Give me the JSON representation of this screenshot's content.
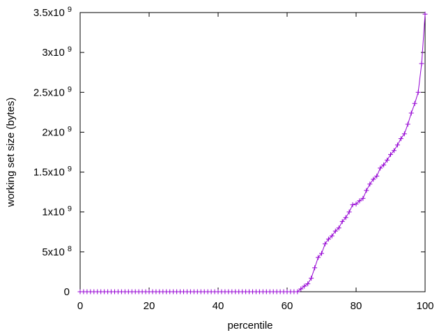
{
  "chart_data": {
    "type": "line",
    "xlabel": "percentile",
    "ylabel": "working set size (bytes)",
    "x": [
      0,
      1,
      2,
      3,
      4,
      5,
      6,
      7,
      8,
      9,
      10,
      11,
      12,
      13,
      14,
      15,
      16,
      17,
      18,
      19,
      20,
      21,
      22,
      23,
      24,
      25,
      26,
      27,
      28,
      29,
      30,
      31,
      32,
      33,
      34,
      35,
      36,
      37,
      38,
      39,
      40,
      41,
      42,
      43,
      44,
      45,
      46,
      47,
      48,
      49,
      50,
      51,
      52,
      53,
      54,
      55,
      56,
      57,
      58,
      59,
      60,
      61,
      62,
      63,
      64,
      65,
      66,
      67,
      68,
      69,
      70,
      71,
      72,
      73,
      74,
      75,
      76,
      77,
      78,
      79,
      80,
      81,
      82,
      83,
      84,
      85,
      86,
      87,
      88,
      89,
      90,
      91,
      92,
      93,
      94,
      95,
      96,
      97,
      98,
      99,
      100
    ],
    "series": [
      {
        "color": "#9400d3",
        "marker": "+",
        "values": [
          0,
          0,
          0,
          0,
          0,
          0,
          0,
          0,
          0,
          0,
          0,
          0,
          0,
          0,
          0,
          0,
          0,
          0,
          0,
          0,
          0,
          0,
          0,
          0,
          0,
          0,
          0,
          0,
          0,
          0,
          0,
          0,
          0,
          0,
          0,
          0,
          0,
          0,
          0,
          0,
          0,
          0,
          0,
          0,
          0,
          0,
          0,
          0,
          0,
          0,
          0,
          0,
          0,
          0,
          0,
          0,
          0,
          0,
          0,
          0,
          0,
          0,
          0,
          0,
          35000000,
          70000000,
          100000000,
          170000000,
          300000000,
          430000000,
          480000000,
          600000000,
          660000000,
          700000000,
          760000000,
          800000000,
          880000000,
          930000000,
          1000000000,
          1090000000,
          1100000000,
          1140000000,
          1170000000,
          1270000000,
          1350000000,
          1410000000,
          1450000000,
          1550000000,
          1590000000,
          1650000000,
          1720000000,
          1770000000,
          1840000000,
          1920000000,
          1980000000,
          2100000000,
          2240000000,
          2360000000,
          2500000000,
          2860000000,
          3480000000
        ]
      }
    ],
    "xlim": [
      0,
      100
    ],
    "xticks": [
      0,
      20,
      40,
      60,
      80,
      100
    ],
    "ylim": [
      0,
      3500000000
    ],
    "yticks": [
      0,
      {
        "value": 500000000,
        "label": "5x10",
        "power": "8"
      },
      {
        "value": 1000000000,
        "label": "1x10",
        "power": "9"
      },
      {
        "value": 1500000000,
        "label": "1.5x10",
        "power": "9"
      },
      {
        "value": 2000000000,
        "label": "2x10",
        "power": "9"
      },
      {
        "value": 2500000000,
        "label": "2.5x10",
        "power": "9"
      },
      {
        "value": 3000000000,
        "label": "3x10",
        "power": "9"
      },
      {
        "value": 3500000000,
        "label": "3.5x10",
        "power": "9"
      }
    ],
    "grid": false
  }
}
